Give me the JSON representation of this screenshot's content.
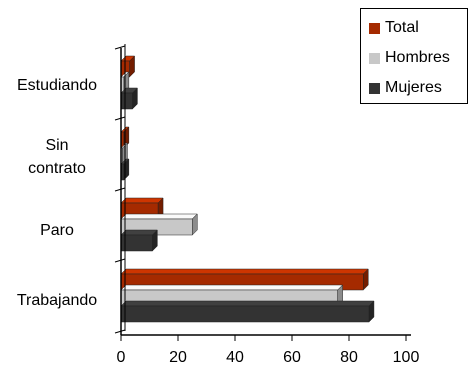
{
  "chart_data": {
    "type": "bar",
    "orientation": "horizontal",
    "categories": [
      "Estudiando",
      "Sin contrato",
      "Paro",
      "Trabajando"
    ],
    "category_lines": [
      [
        "Estudiando"
      ],
      [
        "Sin",
        "contrato"
      ],
      [
        "Paro"
      ],
      [
        "Trabajando"
      ]
    ],
    "series": [
      {
        "name": "Total",
        "color": "#a52a00",
        "values": [
          3,
          1,
          13,
          85
        ]
      },
      {
        "name": "Hombres",
        "color": "#c8c8c8",
        "values": [
          1,
          0.5,
          25,
          76
        ]
      },
      {
        "name": "Mujeres",
        "color": "#333333",
        "values": [
          4,
          1,
          11,
          87
        ]
      }
    ],
    "x_ticks": [
      "0",
      "20",
      "40",
      "60",
      "80",
      "100"
    ],
    "xlim": [
      0,
      100
    ],
    "title": "",
    "xlabel": "",
    "ylabel": "",
    "grid": false,
    "legend_position": "top-right",
    "style": "3d"
  }
}
